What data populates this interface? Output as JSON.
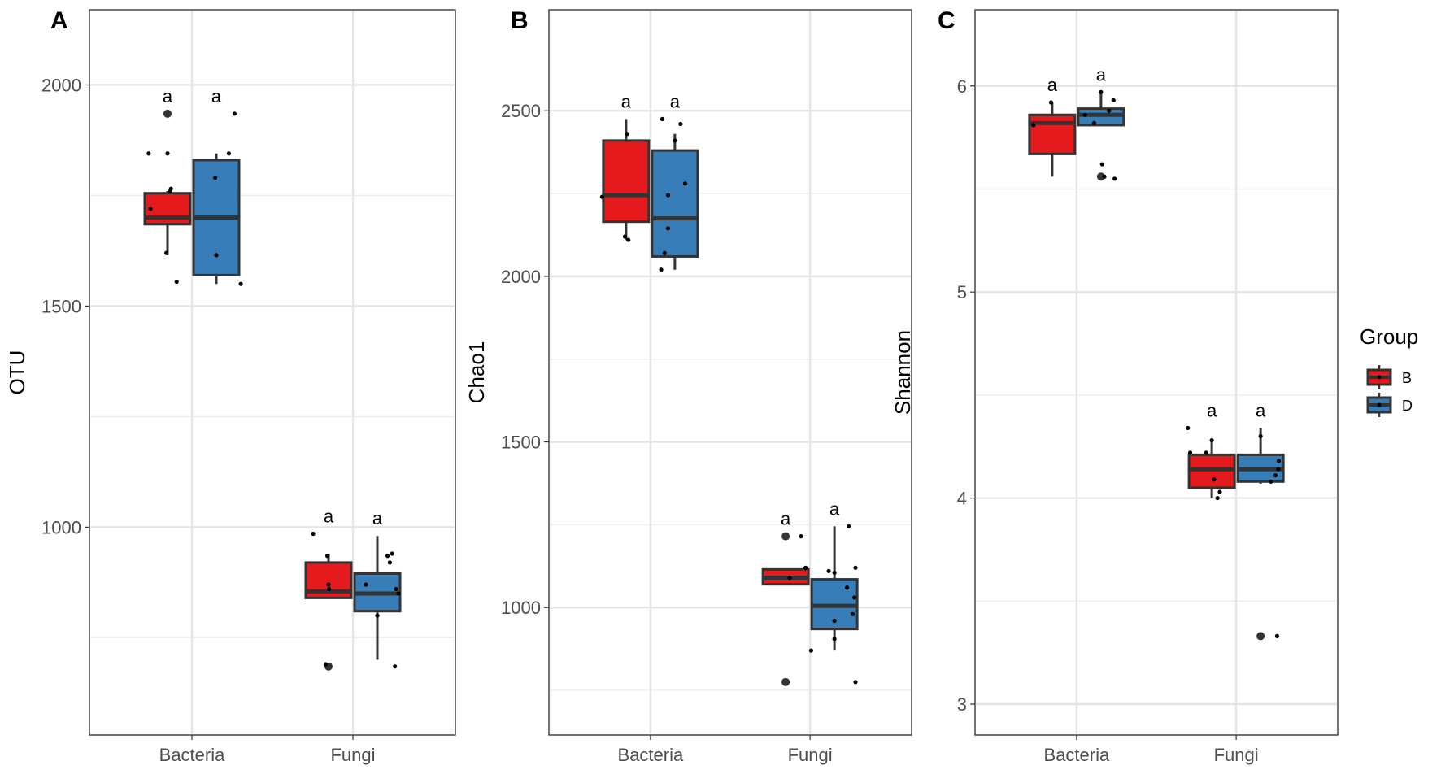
{
  "chart_data": [
    {
      "type": "box",
      "panel_tag": "A",
      "ylabel": "OTU",
      "xlabel": "",
      "categories": [
        "Bacteria",
        "Fungi"
      ],
      "ylim": [
        530,
        2170
      ],
      "yticks": [
        1000,
        1500,
        2000
      ],
      "yminor": [
        750,
        1250,
        1750
      ],
      "groups": [
        "B",
        "D"
      ],
      "boxes": [
        {
          "category": "Bacteria",
          "group": "B",
          "q1": 1685,
          "median": 1700,
          "q3": 1755,
          "whisker_low": 1615,
          "whisker_high": 1760,
          "outliers": [
            1935
          ],
          "points": [
            [
              -0.33,
              1845
            ],
            [
              -0.3,
              1720
            ],
            [
              0.0,
              1845
            ],
            [
              -0.02,
              1620
            ],
            [
              0.06,
              1765
            ],
            [
              0.05,
              1760
            ],
            [
              0.16,
              1555
            ]
          ],
          "label": "a"
        },
        {
          "category": "Bacteria",
          "group": "D",
          "q1": 1570,
          "median": 1700,
          "q3": 1830,
          "whisker_low": 1550,
          "whisker_high": 1845,
          "outliers": [],
          "points": [
            [
              -0.02,
              1790
            ],
            [
              0.0,
              1615
            ],
            [
              0.22,
              1845
            ],
            [
              0.32,
              1935
            ],
            [
              0.43,
              1550
            ]
          ],
          "label": "a"
        },
        {
          "category": "Fungi",
          "group": "B",
          "q1": 840,
          "median": 855,
          "q3": 920,
          "whisker_low": 840,
          "whisker_high": 940,
          "outliers": [
            685
          ],
          "points": [
            [
              -0.27,
              985
            ],
            [
              -0.02,
              935
            ],
            [
              0.0,
              870
            ],
            [
              0.01,
              860
            ],
            [
              -0.05,
              690
            ]
          ],
          "label": "a"
        },
        {
          "category": "Fungi",
          "group": "D",
          "q1": 810,
          "median": 850,
          "q3": 895,
          "whisker_low": 700,
          "whisker_high": 980,
          "outliers": [],
          "points": [
            [
              -0.2,
              870
            ],
            [
              0.0,
              800
            ],
            [
              0.18,
              935
            ],
            [
              0.26,
              940
            ],
            [
              0.22,
              920
            ],
            [
              0.33,
              860
            ],
            [
              0.37,
              850
            ],
            [
              0.31,
              685
            ]
          ],
          "label": "a"
        }
      ]
    },
    {
      "type": "box",
      "panel_tag": "B",
      "ylabel": "Chao1",
      "xlabel": "",
      "categories": [
        "Bacteria",
        "Fungi"
      ],
      "ylim": [
        615,
        2805
      ],
      "yticks": [
        1000,
        1500,
        2000,
        2500
      ],
      "yminor": [
        750,
        1250,
        1750,
        2250
      ],
      "groups": [
        "B",
        "D"
      ],
      "boxes": [
        {
          "category": "Bacteria",
          "group": "B",
          "q1": 2165,
          "median": 2245,
          "q3": 2410,
          "whisker_low": 2110,
          "whisker_high": 2475,
          "outliers": [],
          "points": [
            [
              -0.42,
              2240
            ],
            [
              0.02,
              2430
            ],
            [
              0.04,
              2110
            ],
            [
              -0.02,
              2120
            ]
          ],
          "label": "a"
        },
        {
          "category": "Bacteria",
          "group": "D",
          "q1": 2060,
          "median": 2175,
          "q3": 2380,
          "whisker_low": 2020,
          "whisker_high": 2430,
          "outliers": [],
          "points": [
            [
              -0.22,
              2475
            ],
            [
              -0.24,
              2020
            ],
            [
              -0.18,
              2070
            ],
            [
              -0.12,
              2245
            ],
            [
              -0.12,
              2145
            ],
            [
              0.0,
              2410
            ],
            [
              0.1,
              2460
            ],
            [
              0.18,
              2280
            ]
          ],
          "label": "a"
        },
        {
          "category": "Fungi",
          "group": "B",
          "q1": 1070,
          "median": 1090,
          "q3": 1115,
          "whisker_low": 1070,
          "whisker_high": 1115,
          "outliers": [
            1215,
            775
          ],
          "points": [
            [
              0.07,
              1090
            ],
            [
              0.27,
              1215
            ],
            [
              0.35,
              1120
            ]
          ],
          "label": "a"
        },
        {
          "category": "Fungi",
          "group": "D",
          "q1": 935,
          "median": 1005,
          "q3": 1085,
          "whisker_low": 870,
          "whisker_high": 1245,
          "outliers": [],
          "points": [
            [
              -0.41,
              870
            ],
            [
              -0.1,
              1110
            ],
            [
              0.0,
              1105
            ],
            [
              0.0,
              905
            ],
            [
              0.0,
              960
            ],
            [
              0.22,
              1060
            ],
            [
              0.25,
              1245
            ],
            [
              0.32,
              980
            ],
            [
              0.35,
              1030
            ],
            [
              0.37,
              1120
            ],
            [
              0.37,
              775
            ]
          ],
          "label": "a"
        }
      ]
    },
    {
      "type": "box",
      "panel_tag": "C",
      "ylabel": "Shannon",
      "xlabel": "",
      "categories": [
        "Bacteria",
        "Fungi"
      ],
      "ylim": [
        2.85,
        6.37
      ],
      "yticks": [
        3,
        4,
        5,
        6
      ],
      "yminor": [
        3.5,
        4.5,
        5.5
      ],
      "groups": [
        "B",
        "D"
      ],
      "boxes": [
        {
          "category": "Bacteria",
          "group": "B",
          "q1": 5.67,
          "median": 5.82,
          "q3": 5.86,
          "whisker_low": 5.56,
          "whisker_high": 5.92,
          "outliers": [],
          "points": [
            [
              -0.33,
              5.81
            ],
            [
              -0.02,
              5.92
            ]
          ],
          "label": "a"
        },
        {
          "category": "Bacteria",
          "group": "D",
          "q1": 5.81,
          "median": 5.86,
          "q3": 5.89,
          "whisker_low": 5.81,
          "whisker_high": 5.97,
          "outliers": [
            5.56
          ],
          "points": [
            [
              -0.28,
              5.86
            ],
            [
              -0.12,
              5.82
            ],
            [
              0.0,
              5.97
            ],
            [
              0.02,
              5.62
            ],
            [
              0.06,
              5.56
            ],
            [
              0.14,
              5.88
            ],
            [
              0.22,
              5.93
            ],
            [
              0.24,
              5.55
            ]
          ],
          "label": "a"
        },
        {
          "category": "Fungi",
          "group": "B",
          "q1": 4.05,
          "median": 4.14,
          "q3": 4.21,
          "whisker_low": 4.0,
          "whisker_high": 4.28,
          "outliers": [],
          "points": [
            [
              -0.42,
              4.34
            ],
            [
              -0.38,
              4.22
            ],
            [
              -0.1,
              4.22
            ],
            [
              0.0,
              4.28
            ],
            [
              0.04,
              4.09
            ],
            [
              0.1,
              4.0
            ],
            [
              0.14,
              4.03
            ]
          ],
          "label": "a"
        },
        {
          "category": "Fungi",
          "group": "D",
          "q1": 4.08,
          "median": 4.14,
          "q3": 4.21,
          "whisker_low": 4.07,
          "whisker_high": 4.34,
          "outliers": [
            3.33
          ],
          "points": [
            [
              0.0,
              4.3
            ],
            [
              0.18,
              4.08
            ],
            [
              0.26,
              4.11
            ],
            [
              0.31,
              4.14
            ],
            [
              0.32,
              4.18
            ],
            [
              0.29,
              3.33
            ]
          ],
          "label": "a"
        }
      ]
    }
  ],
  "legend": {
    "title": "Group",
    "items": [
      {
        "label": "B",
        "color": "#e41a1c"
      },
      {
        "label": "D",
        "color": "#377eb8"
      }
    ]
  },
  "colors": {
    "B": "#e41a1c",
    "D": "#377eb8"
  }
}
